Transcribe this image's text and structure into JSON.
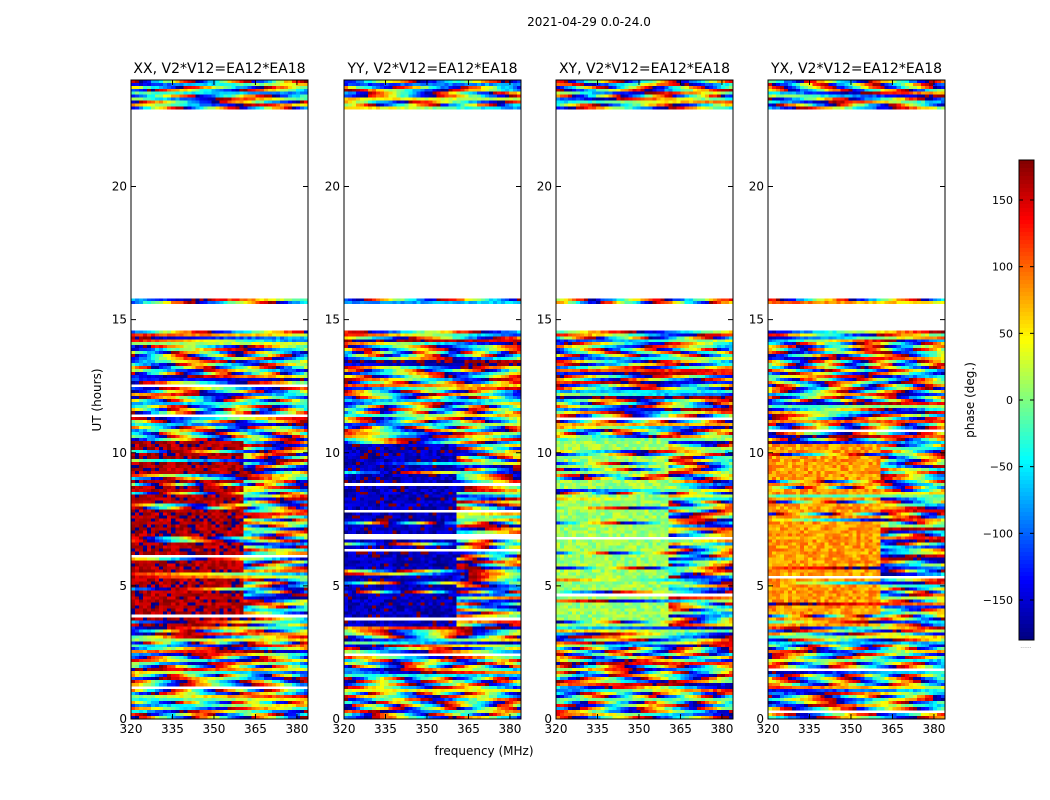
{
  "figure": {
    "suptitle": "2021-04-29 0.0-24.0",
    "xlabel": "frequency (MHz)",
    "ylabel": "UT (hours)",
    "colorbar_label": "phase (deg.)",
    "colorbar_footer": "......"
  },
  "chart_data": {
    "type": "heatmap",
    "colormap": "jet",
    "value_range": [
      -180,
      180
    ],
    "colorbar_ticks": [
      150,
      100,
      50,
      0,
      -50,
      -100,
      -150
    ],
    "x_ticks": [
      320,
      335,
      350,
      365,
      380
    ],
    "y_ticks": [
      0,
      5,
      10,
      15,
      20
    ],
    "xlim": [
      320,
      384
    ],
    "ylim": [
      0,
      24
    ],
    "data_segments_hours": [
      [
        0.0,
        14.6
      ],
      [
        15.6,
        15.8
      ],
      [
        22.9,
        24.0
      ]
    ],
    "blank_segments_hours": [
      [
        14.6,
        15.6
      ],
      [
        15.8,
        22.9
      ]
    ],
    "panels": [
      {
        "title": "XX, V2*V12=EA12*EA18",
        "pol": "XX",
        "dominant_phase_deg": 165,
        "dominant_range_hours": [
          3.5,
          10.5
        ]
      },
      {
        "title": "YY, V2*V12=EA12*EA18",
        "pol": "YY",
        "dominant_phase_deg": -160,
        "dominant_range_hours": [
          3.5,
          10.5
        ]
      },
      {
        "title": "XY, V2*V12=EA12*EA18",
        "pol": "XY",
        "dominant_phase_deg": 10,
        "dominant_range_hours": [
          3.5,
          10.5
        ]
      },
      {
        "title": "YX, V2*V12=EA12*EA18",
        "pol": "YX",
        "dominant_phase_deg": 80,
        "dominant_range_hours": [
          3.5,
          10.5
        ]
      }
    ]
  }
}
